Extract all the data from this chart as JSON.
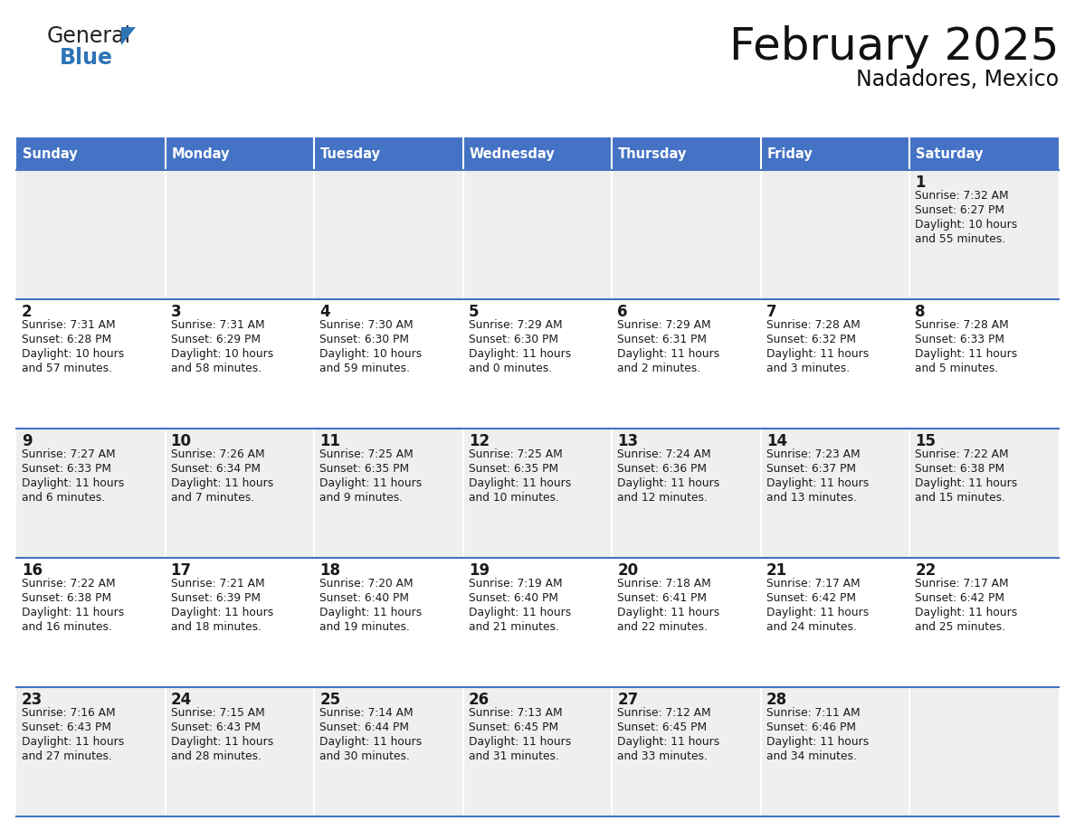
{
  "title": "February 2025",
  "subtitle": "Nadadores, Mexico",
  "header_bg": "#4472C4",
  "header_text_color": "#FFFFFF",
  "header_days": [
    "Sunday",
    "Monday",
    "Tuesday",
    "Wednesday",
    "Thursday",
    "Friday",
    "Saturday"
  ],
  "row_bg_odd": "#EFEFEF",
  "row_bg_even": "#FFFFFF",
  "cell_border_color": "#4472C4",
  "day_number_color": "#1a1a1a",
  "info_text_color": "#1a1a1a",
  "logo_triangle_color": "#2E75B6",
  "calendar_data": [
    [
      null,
      null,
      null,
      null,
      null,
      null,
      {
        "day": "1",
        "sunrise": "7:32 AM",
        "sunset": "6:27 PM",
        "dl1": "Daylight: 10 hours",
        "dl2": "and 55 minutes."
      }
    ],
    [
      {
        "day": "2",
        "sunrise": "7:31 AM",
        "sunset": "6:28 PM",
        "dl1": "Daylight: 10 hours",
        "dl2": "and 57 minutes."
      },
      {
        "day": "3",
        "sunrise": "7:31 AM",
        "sunset": "6:29 PM",
        "dl1": "Daylight: 10 hours",
        "dl2": "and 58 minutes."
      },
      {
        "day": "4",
        "sunrise": "7:30 AM",
        "sunset": "6:30 PM",
        "dl1": "Daylight: 10 hours",
        "dl2": "and 59 minutes."
      },
      {
        "day": "5",
        "sunrise": "7:29 AM",
        "sunset": "6:30 PM",
        "dl1": "Daylight: 11 hours",
        "dl2": "and 0 minutes."
      },
      {
        "day": "6",
        "sunrise": "7:29 AM",
        "sunset": "6:31 PM",
        "dl1": "Daylight: 11 hours",
        "dl2": "and 2 minutes."
      },
      {
        "day": "7",
        "sunrise": "7:28 AM",
        "sunset": "6:32 PM",
        "dl1": "Daylight: 11 hours",
        "dl2": "and 3 minutes."
      },
      {
        "day": "8",
        "sunrise": "7:28 AM",
        "sunset": "6:33 PM",
        "dl1": "Daylight: 11 hours",
        "dl2": "and 5 minutes."
      }
    ],
    [
      {
        "day": "9",
        "sunrise": "7:27 AM",
        "sunset": "6:33 PM",
        "dl1": "Daylight: 11 hours",
        "dl2": "and 6 minutes."
      },
      {
        "day": "10",
        "sunrise": "7:26 AM",
        "sunset": "6:34 PM",
        "dl1": "Daylight: 11 hours",
        "dl2": "and 7 minutes."
      },
      {
        "day": "11",
        "sunrise": "7:25 AM",
        "sunset": "6:35 PM",
        "dl1": "Daylight: 11 hours",
        "dl2": "and 9 minutes."
      },
      {
        "day": "12",
        "sunrise": "7:25 AM",
        "sunset": "6:35 PM",
        "dl1": "Daylight: 11 hours",
        "dl2": "and 10 minutes."
      },
      {
        "day": "13",
        "sunrise": "7:24 AM",
        "sunset": "6:36 PM",
        "dl1": "Daylight: 11 hours",
        "dl2": "and 12 minutes."
      },
      {
        "day": "14",
        "sunrise": "7:23 AM",
        "sunset": "6:37 PM",
        "dl1": "Daylight: 11 hours",
        "dl2": "and 13 minutes."
      },
      {
        "day": "15",
        "sunrise": "7:22 AM",
        "sunset": "6:38 PM",
        "dl1": "Daylight: 11 hours",
        "dl2": "and 15 minutes."
      }
    ],
    [
      {
        "day": "16",
        "sunrise": "7:22 AM",
        "sunset": "6:38 PM",
        "dl1": "Daylight: 11 hours",
        "dl2": "and 16 minutes."
      },
      {
        "day": "17",
        "sunrise": "7:21 AM",
        "sunset": "6:39 PM",
        "dl1": "Daylight: 11 hours",
        "dl2": "and 18 minutes."
      },
      {
        "day": "18",
        "sunrise": "7:20 AM",
        "sunset": "6:40 PM",
        "dl1": "Daylight: 11 hours",
        "dl2": "and 19 minutes."
      },
      {
        "day": "19",
        "sunrise": "7:19 AM",
        "sunset": "6:40 PM",
        "dl1": "Daylight: 11 hours",
        "dl2": "and 21 minutes."
      },
      {
        "day": "20",
        "sunrise": "7:18 AM",
        "sunset": "6:41 PM",
        "dl1": "Daylight: 11 hours",
        "dl2": "and 22 minutes."
      },
      {
        "day": "21",
        "sunrise": "7:17 AM",
        "sunset": "6:42 PM",
        "dl1": "Daylight: 11 hours",
        "dl2": "and 24 minutes."
      },
      {
        "day": "22",
        "sunrise": "7:17 AM",
        "sunset": "6:42 PM",
        "dl1": "Daylight: 11 hours",
        "dl2": "and 25 minutes."
      }
    ],
    [
      {
        "day": "23",
        "sunrise": "7:16 AM",
        "sunset": "6:43 PM",
        "dl1": "Daylight: 11 hours",
        "dl2": "and 27 minutes."
      },
      {
        "day": "24",
        "sunrise": "7:15 AM",
        "sunset": "6:43 PM",
        "dl1": "Daylight: 11 hours",
        "dl2": "and 28 minutes."
      },
      {
        "day": "25",
        "sunrise": "7:14 AM",
        "sunset": "6:44 PM",
        "dl1": "Daylight: 11 hours",
        "dl2": "and 30 minutes."
      },
      {
        "day": "26",
        "sunrise": "7:13 AM",
        "sunset": "6:45 PM",
        "dl1": "Daylight: 11 hours",
        "dl2": "and 31 minutes."
      },
      {
        "day": "27",
        "sunrise": "7:12 AM",
        "sunset": "6:45 PM",
        "dl1": "Daylight: 11 hours",
        "dl2": "and 33 minutes."
      },
      {
        "day": "28",
        "sunrise": "7:11 AM",
        "sunset": "6:46 PM",
        "dl1": "Daylight: 11 hours",
        "dl2": "and 34 minutes."
      },
      null
    ]
  ]
}
